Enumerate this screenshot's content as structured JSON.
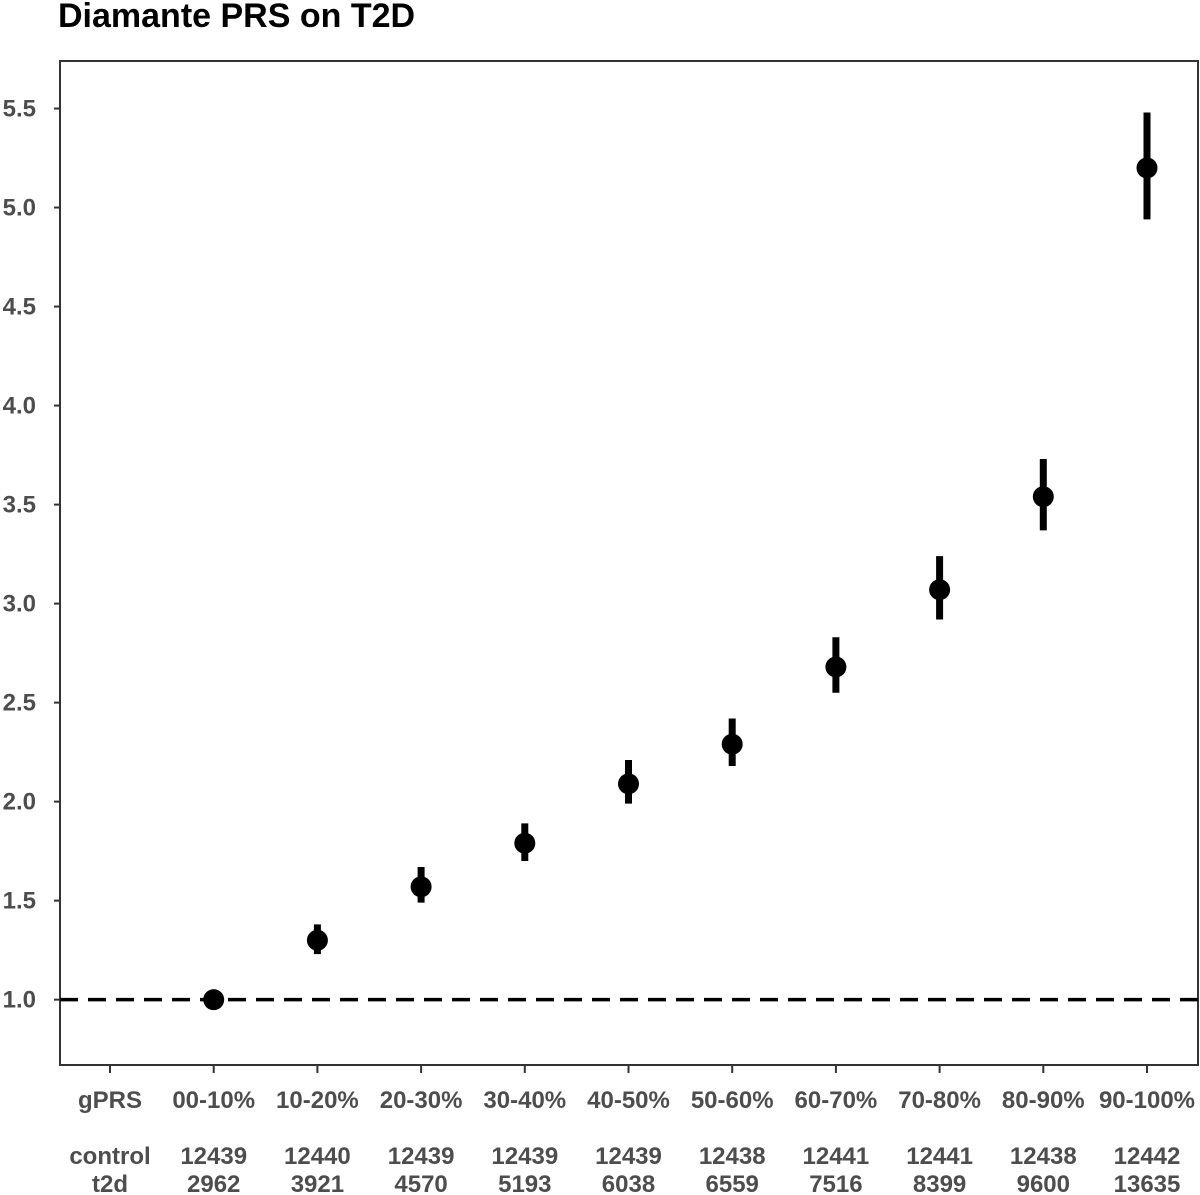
{
  "chart_data": {
    "type": "scatter",
    "title": "Diamante PRS on T2D",
    "xlabel": "",
    "ylabel": "",
    "ylim": [
      0.67,
      5.74
    ],
    "y_ticks": [
      "1.0",
      "1.5",
      "2.0",
      "2.5",
      "3.0",
      "3.5",
      "4.0",
      "4.5",
      "5.0",
      "5.5"
    ],
    "reference_line": 1.0,
    "grid": false,
    "row_labels": [
      "gPRS",
      "control",
      "t2d"
    ],
    "categories": [
      "00-10%",
      "10-20%",
      "20-30%",
      "30-40%",
      "40-50%",
      "50-60%",
      "60-70%",
      "70-80%",
      "80-90%",
      "90-100%"
    ],
    "values": [
      1.0,
      1.3,
      1.57,
      1.79,
      2.09,
      2.29,
      2.68,
      3.07,
      3.54,
      5.2
    ],
    "ci_lower": [
      1.0,
      1.23,
      1.49,
      1.7,
      1.99,
      2.18,
      2.55,
      2.92,
      3.37,
      4.94
    ],
    "ci_upper": [
      1.0,
      1.38,
      1.67,
      1.89,
      2.21,
      2.42,
      2.83,
      3.24,
      3.73,
      5.48
    ],
    "control_counts": [
      "12439",
      "12440",
      "12439",
      "12439",
      "12439",
      "12438",
      "12441",
      "12441",
      "12438",
      "12442"
    ],
    "t2d_counts": [
      "2962",
      "3921",
      "4570",
      "5193",
      "6038",
      "6559",
      "7516",
      "8399",
      "9600",
      "13635"
    ]
  }
}
